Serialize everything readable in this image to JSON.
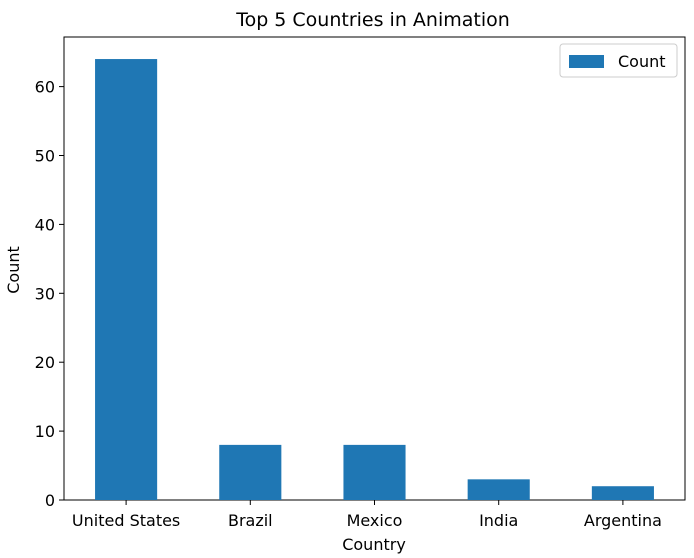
{
  "chart_data": {
    "type": "bar",
    "title": "Top 5 Countries in Animation",
    "xlabel": "Country",
    "ylabel": "Count",
    "categories": [
      "United States",
      "Brazil",
      "Mexico",
      "India",
      "Argentina"
    ],
    "series": [
      {
        "name": "Count",
        "values": [
          64,
          8,
          8,
          3,
          2
        ],
        "color": "#1f77b4"
      }
    ],
    "ylim": [
      0,
      67.2
    ],
    "yticks": [
      0,
      10,
      20,
      30,
      40,
      50,
      60
    ],
    "grid": false,
    "legend": "top-right"
  }
}
